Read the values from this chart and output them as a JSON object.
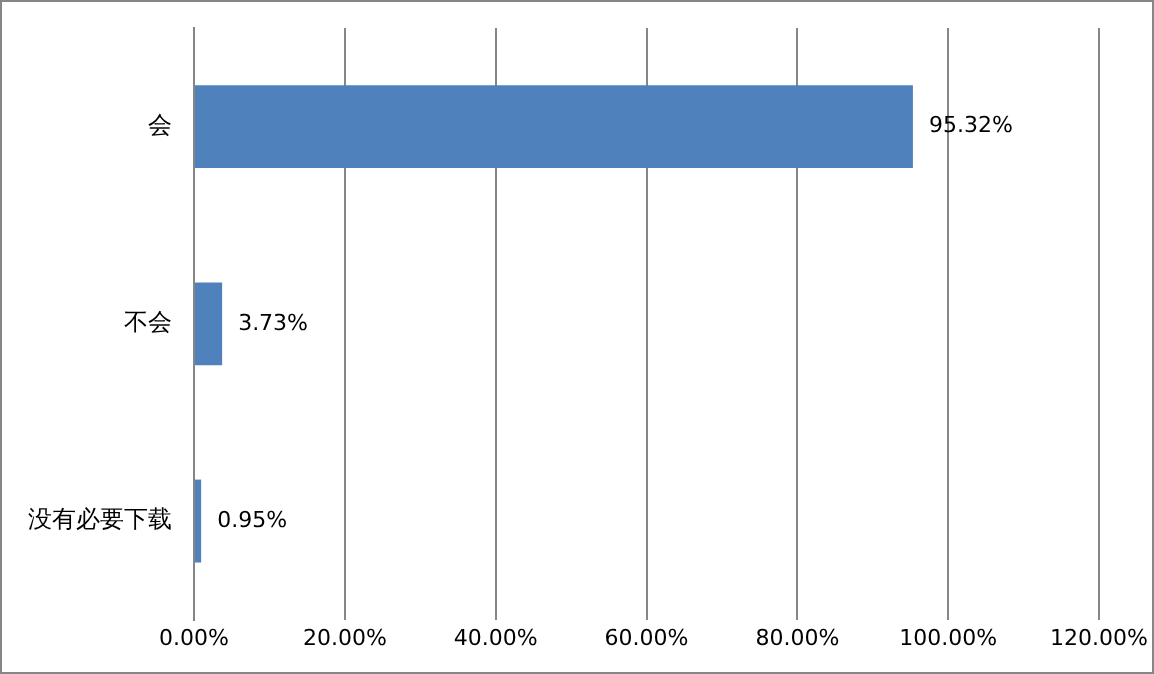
{
  "chart_data": {
    "type": "bar",
    "orientation": "horizontal",
    "categories": [
      "会",
      "不会",
      "没有必要下载"
    ],
    "values": [
      95.32,
      3.73,
      0.95
    ],
    "value_labels": [
      "95.32%",
      "3.73%",
      "0.95%"
    ],
    "color": "#4f81bd",
    "xlim": [
      0,
      120
    ],
    "xticks": [
      {
        "value": 0,
        "label": "0.00%"
      },
      {
        "value": 20,
        "label": "20.00%"
      },
      {
        "value": 40,
        "label": "40.00%"
      },
      {
        "value": 60,
        "label": "60.00%"
      },
      {
        "value": 80,
        "label": "80.00%"
      },
      {
        "value": 100,
        "label": "100.00%"
      },
      {
        "value": 120,
        "label": "120.00%"
      }
    ],
    "grid": "x",
    "legend": false
  }
}
